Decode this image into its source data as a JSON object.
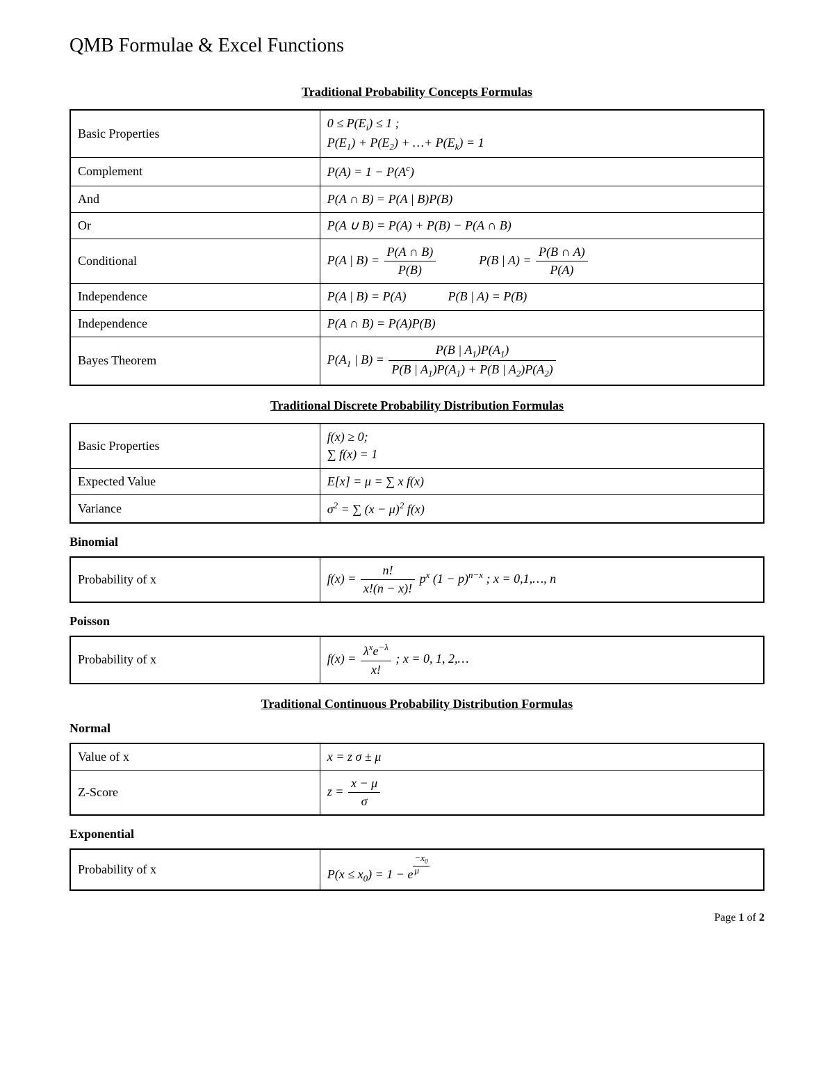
{
  "page_title": "QMB Formulae & Excel Functions",
  "section1": {
    "heading": "Traditional Probability Concepts Formulas",
    "rows": {
      "basic_properties_label": "Basic Properties",
      "complement_label": "Complement",
      "and_label": "And",
      "or_label": "Or",
      "conditional_label": "Conditional",
      "independence1_label": "Independence",
      "independence2_label": "Independence",
      "bayes_label": "Bayes Theorem"
    }
  },
  "section2": {
    "heading": "Traditional Discrete Probability Distribution Formulas",
    "rows": {
      "basic_properties_label": "Basic Properties",
      "expected_value_label": "Expected Value",
      "variance_label": "Variance"
    },
    "binomial_heading": "Binomial",
    "binomial_prob_label": "Probability of x",
    "poisson_heading": "Poisson",
    "poisson_prob_label": "Probability of x"
  },
  "section3": {
    "heading": "Traditional Continuous Probability Distribution Formulas",
    "normal_heading": "Normal",
    "value_of_x_label": "Value of  x",
    "zscore_label": "Z-Score",
    "exponential_heading": "Exponential",
    "exp_prob_label": "Probability of x"
  },
  "footer": {
    "prefix": "Page ",
    "current": "1",
    "of": " of ",
    "total": "2"
  },
  "colors": {
    "text": "#000000",
    "background": "#ffffff",
    "border": "#000000"
  }
}
